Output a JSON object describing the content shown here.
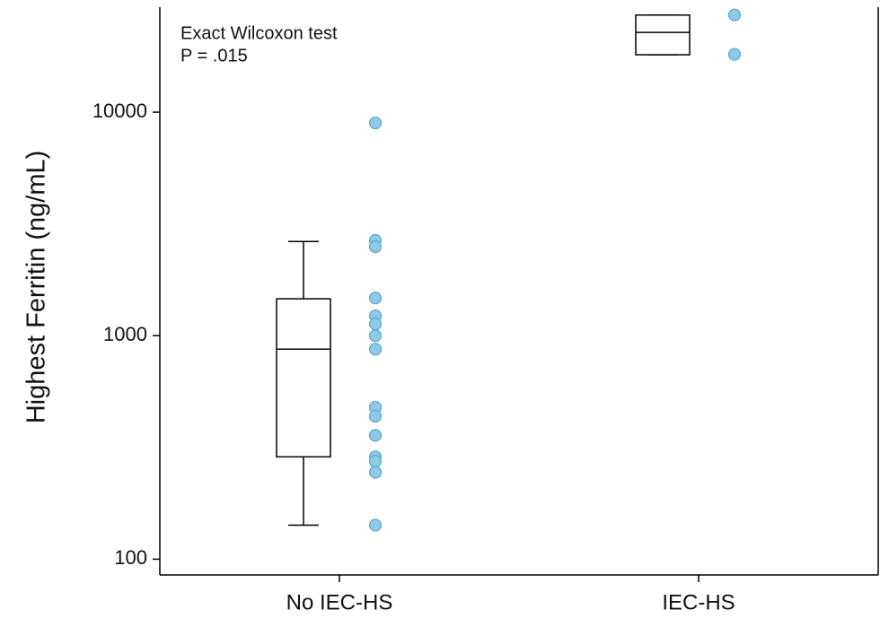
{
  "chart_data": {
    "type": "box",
    "ylabel": "Highest Ferritin (ng/mL)",
    "annotation": [
      "Exact Wilcoxon test",
      "P = .015"
    ],
    "categories": [
      "No IEC-HS",
      "IEC-HS"
    ],
    "boxes": [
      {
        "whislo": 142,
        "q1": 287,
        "median": 870,
        "q3": 1462,
        "whishi": 2640
      },
      {
        "whislo": 18070,
        "q1": 18070,
        "median": 22750,
        "q3": 27200,
        "whishi": 27200
      }
    ],
    "points": [
      [
        8950,
        2670,
        2500,
        1475,
        1225,
        1128,
        1000,
        870,
        478,
        436,
        358,
        287,
        274,
        245,
        142
      ],
      [
        27200,
        18150
      ]
    ],
    "point_color": "#8ec9e6",
    "point_edge": "#5ba7d1",
    "box_color": "#000000",
    "log_scale": true,
    "ylim": [
      85,
      29500
    ],
    "yticks": [
      100,
      1000,
      10000
    ]
  }
}
